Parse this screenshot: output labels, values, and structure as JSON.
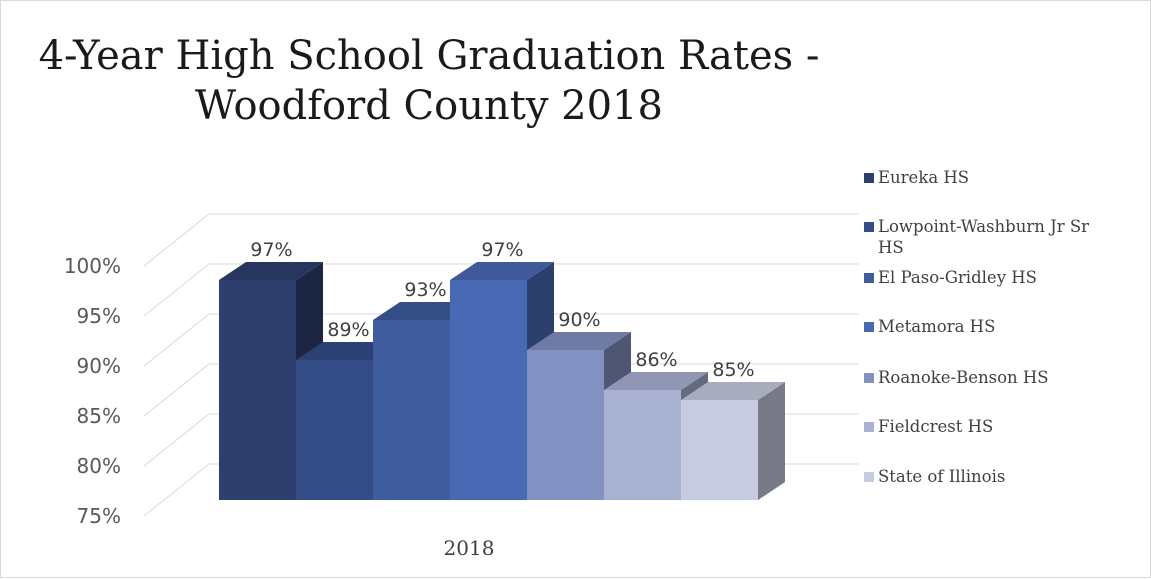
{
  "chart_data": {
    "type": "bar",
    "title_lines": [
      "4-Year High School Graduation Rates -",
      "Woodford County 2018"
    ],
    "categories": [
      "2018"
    ],
    "series": [
      {
        "name": "Eureka HS",
        "values": [
          97
        ],
        "label": "97%",
        "color": "#2e3f6e"
      },
      {
        "name": "Lowpoint-Washburn Jr Sr HS",
        "values": [
          89
        ],
        "label": "89%",
        "color": "#344d87"
      },
      {
        "name": "El Paso-Gridley HS",
        "values": [
          93
        ],
        "label": "93%",
        "color": "#3f5c9e"
      },
      {
        "name": "Metamora HS",
        "values": [
          97
        ],
        "label": "97%",
        "color": "#4a69b5"
      },
      {
        "name": "Roanoke-Benson HS",
        "values": [
          90
        ],
        "label": "90%",
        "color": "#8390c2"
      },
      {
        "name": "Fieldcrest HS",
        "values": [
          86
        ],
        "label": "86%",
        "color": "#a9b1d2"
      },
      {
        "name": "State of Illinois",
        "values": [
          85
        ],
        "label": "85%",
        "color": "#c6cbe0"
      }
    ],
    "y_ticks": [
      "75%",
      "80%",
      "85%",
      "90%",
      "95%",
      "100%"
    ],
    "ylim": [
      75,
      100
    ],
    "legend_position": "right",
    "grid": true,
    "projection": "3d"
  }
}
